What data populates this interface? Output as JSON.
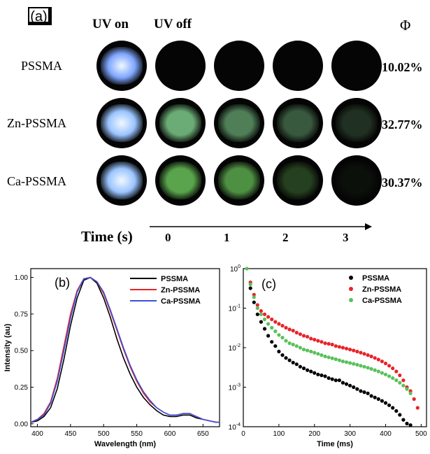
{
  "panel_a": {
    "label": "(a)",
    "columns": {
      "uv_on": "UV on",
      "uv_off": "UV off",
      "phi": "Φ"
    },
    "rows": [
      {
        "name": "PSSMA",
        "qy": "10.02%",
        "glow_color": "#7fa7ff",
        "levels": [
          1.0,
          0,
          0,
          0,
          0
        ],
        "afterglow_color": "#7ee08a"
      },
      {
        "name": "Zn-PSSMA",
        "qy": "32.77%",
        "glow_color": "#9ac4ff",
        "levels": [
          1.0,
          0.75,
          0.55,
          0.38,
          0.2
        ],
        "afterglow_color": "#8de29a"
      },
      {
        "name": "Ca-PSSMA",
        "qy": "30.37%",
        "glow_color": "#9ac4ff",
        "levels": [
          1.0,
          0.8,
          0.7,
          0.3,
          0.06
        ],
        "afterglow_color": "#6ecb5d"
      }
    ],
    "time": {
      "label": "Time (s)",
      "ticks": [
        "0",
        "1",
        "2",
        "3"
      ]
    }
  },
  "chart_data": [
    {
      "type": "line",
      "panel_label": "(b)",
      "xlabel": "Wavelength (nm)",
      "ylabel": "Intensity (au)",
      "xlim": [
        390,
        675
      ],
      "ylim": [
        -0.02,
        1.06
      ],
      "x_ticks": [
        "400",
        "450",
        "500",
        "550",
        "600",
        "650"
      ],
      "y_ticks": [
        "0.00",
        "0.25",
        "0.50",
        "0.75",
        "1.00"
      ],
      "legend_position": "top-right",
      "series": [
        {
          "name": "PSSMA",
          "color": "#000000",
          "x": [
            390,
            400,
            410,
            420,
            430,
            440,
            450,
            460,
            470,
            480,
            490,
            500,
            510,
            520,
            530,
            540,
            550,
            560,
            570,
            580,
            590,
            600,
            610,
            620,
            630,
            640,
            650,
            660,
            670,
            675
          ],
          "y": [
            0.01,
            0.02,
            0.05,
            0.11,
            0.24,
            0.44,
            0.67,
            0.86,
            0.98,
            1.0,
            0.96,
            0.86,
            0.73,
            0.58,
            0.45,
            0.34,
            0.25,
            0.18,
            0.13,
            0.09,
            0.06,
            0.05,
            0.05,
            0.06,
            0.06,
            0.04,
            0.03,
            0.02,
            0.01,
            0.01
          ]
        },
        {
          "name": "Zn-PSSMA",
          "color": "#e8232a",
          "x": [
            390,
            400,
            410,
            420,
            430,
            440,
            450,
            460,
            470,
            480,
            490,
            500,
            510,
            520,
            530,
            540,
            550,
            560,
            570,
            580,
            590,
            600,
            610,
            620,
            630,
            640,
            650,
            660,
            670,
            675
          ],
          "y": [
            0.01,
            0.03,
            0.07,
            0.15,
            0.31,
            0.53,
            0.75,
            0.91,
            0.99,
            1.0,
            0.97,
            0.89,
            0.77,
            0.64,
            0.51,
            0.39,
            0.29,
            0.21,
            0.15,
            0.11,
            0.08,
            0.06,
            0.06,
            0.07,
            0.07,
            0.05,
            0.03,
            0.02,
            0.01,
            0.01
          ]
        },
        {
          "name": "Ca-PSSMA",
          "color": "#3a4fd8",
          "x": [
            390,
            400,
            410,
            420,
            430,
            440,
            450,
            460,
            470,
            480,
            490,
            500,
            510,
            520,
            530,
            540,
            550,
            560,
            570,
            580,
            590,
            600,
            610,
            620,
            630,
            640,
            650,
            660,
            670,
            675
          ],
          "y": [
            0.01,
            0.03,
            0.06,
            0.14,
            0.29,
            0.5,
            0.72,
            0.9,
            0.99,
            1.0,
            0.97,
            0.9,
            0.78,
            0.65,
            0.52,
            0.4,
            0.3,
            0.22,
            0.16,
            0.11,
            0.08,
            0.06,
            0.06,
            0.07,
            0.07,
            0.05,
            0.03,
            0.02,
            0.01,
            0.01
          ]
        }
      ]
    },
    {
      "type": "scatter",
      "panel_label": "(c)",
      "xlabel": "Time (ms)",
      "ylabel": "",
      "xlim": [
        0,
        515
      ],
      "ylim": [
        0.0001,
        1
      ],
      "y_scale": "log",
      "x_ticks": [
        "0",
        "100",
        "200",
        "300",
        "400",
        "500"
      ],
      "y_ticks": [
        {
          "base": "10",
          "exp": "0"
        },
        {
          "base": "10",
          "exp": "-1"
        },
        {
          "base": "10",
          "exp": "-2"
        },
        {
          "base": "10",
          "exp": "-3"
        },
        {
          "base": "10",
          "exp": "-4"
        }
      ],
      "legend_position": "top-right",
      "series": [
        {
          "name": "PSSMA",
          "color": "#000000",
          "x": [
            20,
            30,
            40,
            50,
            60,
            70,
            80,
            90,
            100,
            110,
            120,
            130,
            140,
            150,
            160,
            170,
            180,
            190,
            200,
            210,
            220,
            230,
            240,
            250,
            260,
            270,
            280,
            290,
            300,
            310,
            320,
            330,
            340,
            350,
            360,
            370,
            380,
            390,
            400,
            410,
            420,
            430,
            440,
            450,
            460,
            470
          ],
          "y": [
            0.32,
            0.14,
            0.07,
            0.045,
            0.03,
            0.02,
            0.014,
            0.011,
            0.008,
            0.0065,
            0.0055,
            0.0048,
            0.0042,
            0.0038,
            0.0033,
            0.003,
            0.0027,
            0.0025,
            0.0023,
            0.0021,
            0.002,
            0.0019,
            0.0017,
            0.0016,
            0.0015,
            0.0015,
            0.0013,
            0.0012,
            0.0011,
            0.001,
            0.0009,
            0.0008,
            0.00075,
            0.0007,
            0.0006,
            0.00055,
            0.0005,
            0.00045,
            0.0004,
            0.00035,
            0.0003,
            0.00025,
            0.0002,
            0.00015,
            0.00012,
            0.00011
          ]
        },
        {
          "name": "Zn-PSSMA",
          "color": "#e8232a",
          "x": [
            20,
            30,
            40,
            50,
            60,
            70,
            80,
            90,
            100,
            110,
            120,
            130,
            140,
            150,
            160,
            170,
            180,
            190,
            200,
            210,
            220,
            230,
            240,
            250,
            260,
            270,
            280,
            290,
            300,
            310,
            320,
            330,
            340,
            350,
            360,
            370,
            380,
            390,
            400,
            410,
            420,
            430,
            440,
            450,
            460,
            470,
            480,
            490
          ],
          "y": [
            0.45,
            0.22,
            0.12,
            0.085,
            0.07,
            0.06,
            0.052,
            0.045,
            0.04,
            0.036,
            0.032,
            0.029,
            0.027,
            0.024,
            0.022,
            0.02,
            0.019,
            0.017,
            0.016,
            0.015,
            0.014,
            0.013,
            0.0125,
            0.012,
            0.011,
            0.0105,
            0.01,
            0.0095,
            0.009,
            0.0085,
            0.008,
            0.0075,
            0.007,
            0.0065,
            0.006,
            0.0055,
            0.005,
            0.0045,
            0.004,
            0.0035,
            0.003,
            0.0025,
            0.002,
            0.0015,
            0.001,
            0.0008,
            0.0005,
            0.0003
          ]
        },
        {
          "name": "Ca-PSSMA",
          "color": "#59c15a",
          "x": [
            10,
            20,
            30,
            40,
            50,
            60,
            70,
            80,
            90,
            100,
            110,
            120,
            130,
            140,
            150,
            160,
            170,
            180,
            190,
            200,
            210,
            220,
            230,
            240,
            250,
            260,
            270,
            280,
            290,
            300,
            310,
            320,
            330,
            340,
            350,
            360,
            370,
            380,
            390,
            400,
            410,
            420,
            430,
            440,
            450,
            460,
            470
          ],
          "y": [
            1.0,
            0.4,
            0.19,
            0.1,
            0.07,
            0.052,
            0.04,
            0.032,
            0.026,
            0.021,
            0.018,
            0.015,
            0.013,
            0.012,
            0.011,
            0.01,
            0.009,
            0.0085,
            0.008,
            0.0075,
            0.007,
            0.0065,
            0.006,
            0.0057,
            0.0054,
            0.0051,
            0.0048,
            0.0045,
            0.0043,
            0.0041,
            0.0039,
            0.0037,
            0.0035,
            0.0033,
            0.0031,
            0.0029,
            0.0027,
            0.0025,
            0.0023,
            0.0021,
            0.0019,
            0.0017,
            0.0015,
            0.0013,
            0.0011,
            0.0009,
            0.0007
          ]
        }
      ]
    }
  ]
}
